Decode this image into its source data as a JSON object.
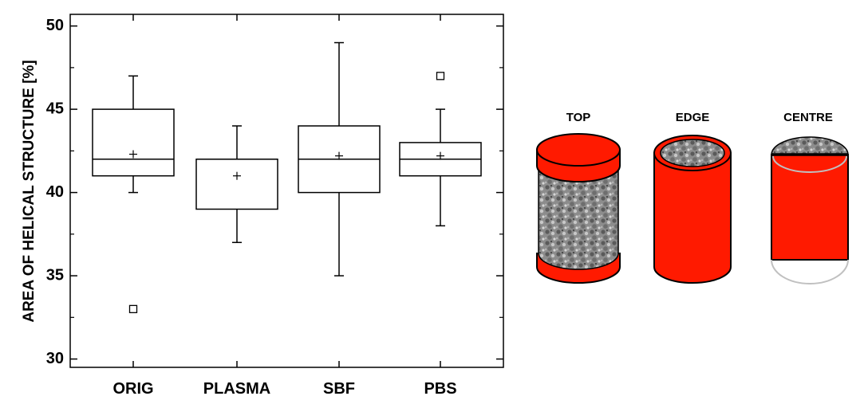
{
  "chart_data": {
    "type": "box",
    "title": "",
    "xlabel": "",
    "ylabel": "AREA OF HELICAL STRUCTURE [%]",
    "ylim": [
      29.5,
      50.7
    ],
    "yticks": [
      30,
      35,
      40,
      45,
      50
    ],
    "grid": false,
    "legend": "none",
    "categories": [
      "ORIG",
      "PLASMA",
      "SBF",
      "PBS"
    ],
    "boxes": [
      {
        "category": "ORIG",
        "whisker_low": 40,
        "q1": 41,
        "median": 42,
        "q3": 45,
        "whisker_high": 47,
        "mean": 42.3,
        "outliers": [
          33
        ]
      },
      {
        "category": "PLASMA",
        "whisker_low": 37,
        "q1": 39,
        "median": 42,
        "q3": 42,
        "whisker_high": 44,
        "mean": 41.0,
        "outliers": []
      },
      {
        "category": "SBF",
        "whisker_low": 35,
        "q1": 40,
        "median": 42,
        "q3": 44,
        "whisker_high": 49,
        "mean": 42.2,
        "outliers": []
      },
      {
        "category": "PBS",
        "whisker_low": 38,
        "q1": 41,
        "median": 42,
        "q3": 43,
        "whisker_high": 45,
        "mean": 42.2,
        "outliers": [
          47
        ]
      }
    ]
  },
  "samples": {
    "labels": [
      "TOP",
      "EDGE",
      "CENTRE"
    ],
    "highlight_color": "#ff1a00",
    "outline_color": "#000000",
    "texture_color": "#8c8c8c"
  }
}
